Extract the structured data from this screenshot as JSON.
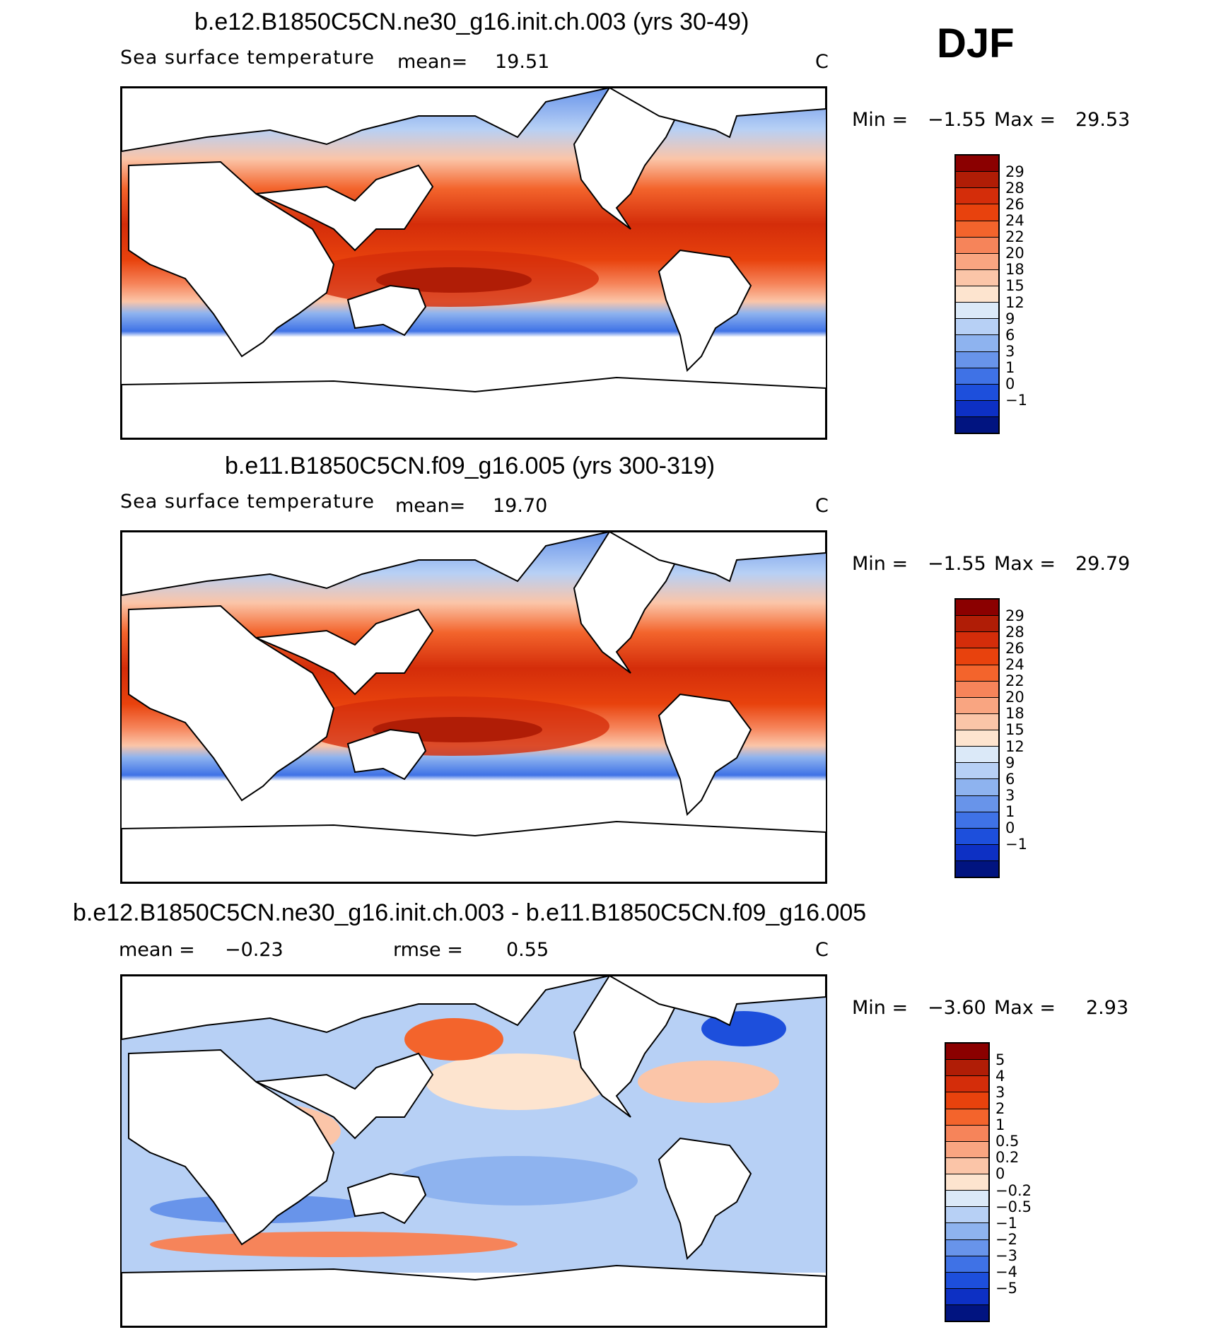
{
  "season": "DJF",
  "units": "C",
  "panel1": {
    "title": "b.e12.B1850C5CN.ne30_g16.init.ch.003 (yrs 30-49)",
    "variable": "Sea surface temperature",
    "mean_label": "mean=",
    "mean_value": "19.51",
    "min_label": "Min =",
    "min_value": "−1.55",
    "max_label": "Max =",
    "max_value": "29.53"
  },
  "panel2": {
    "title": "b.e11.B1850C5CN.f09_g16.005 (yrs 300-319)",
    "variable": "Sea surface temperature",
    "mean_label": "mean=",
    "mean_value": "19.70",
    "min_label": "Min =",
    "min_value": "−1.55",
    "max_label": "Max =",
    "max_value": "29.79"
  },
  "panel3": {
    "title": "b.e12.B1850C5CN.ne30_g16.init.ch.003 - b.e11.B1850C5CN.f09_g16.005",
    "mean_label": "mean =",
    "mean_value": "−0.23",
    "rmse_label": "rmse =",
    "rmse_value": "0.55",
    "min_label": "Min =",
    "min_value": "−3.60",
    "max_label": "Max =",
    "max_value": "2.93"
  },
  "sst_colorbar": {
    "labels": [
      "29",
      "28",
      "26",
      "24",
      "22",
      "20",
      "18",
      "15",
      "12",
      "9",
      "6",
      "3",
      "1",
      "0",
      "−1"
    ],
    "colors": [
      "#8b0000",
      "#b01d06",
      "#d42d0a",
      "#e8420d",
      "#f3642c",
      "#f6845a",
      "#f9a581",
      "#fbc5a8",
      "#fde4cf",
      "#dbe9f8",
      "#b7d0f5",
      "#8eb3ef",
      "#6894ea",
      "#3f72e6",
      "#1d4fdc",
      "#0d30c4",
      "#011480"
    ]
  },
  "diff_colorbar": {
    "labels": [
      "5",
      "4",
      "3",
      "2",
      "1",
      "0.5",
      "0.2",
      "0",
      "−0.2",
      "−0.5",
      "−1",
      "−2",
      "−3",
      "−4",
      "−5"
    ],
    "colors": [
      "#8b0000",
      "#b01d06",
      "#d42d0a",
      "#e8420d",
      "#f3642c",
      "#f6845a",
      "#f9a581",
      "#fbc5a8",
      "#fde4cf",
      "#dbe9f8",
      "#b7d0f5",
      "#8eb3ef",
      "#6894ea",
      "#3f72e6",
      "#1d4fdc",
      "#0d30c4",
      "#011480"
    ]
  },
  "chart_data": [
    {
      "type": "heatmap",
      "title": "b.e12.B1850C5CN.ne30_g16.init.ch.003 (yrs 30-49)",
      "variable": "Sea surface temperature",
      "units": "C",
      "season": "DJF",
      "mean": 19.51,
      "min": -1.55,
      "max": 29.53,
      "contour_levels": [
        -1,
        0,
        1,
        3,
        6,
        9,
        12,
        15,
        18,
        20,
        22,
        24,
        26,
        28,
        29
      ]
    },
    {
      "type": "heatmap",
      "title": "b.e11.B1850C5CN.f09_g16.005 (yrs 300-319)",
      "variable": "Sea surface temperature",
      "units": "C",
      "season": "DJF",
      "mean": 19.7,
      "min": -1.55,
      "max": 29.79,
      "contour_levels": [
        -1,
        0,
        1,
        3,
        6,
        9,
        12,
        15,
        18,
        20,
        22,
        24,
        26,
        28,
        29
      ]
    },
    {
      "type": "heatmap",
      "title": "b.e12.B1850C5CN.ne30_g16.init.ch.003 - b.e11.B1850C5CN.f09_g16.005",
      "units": "C",
      "season": "DJF",
      "mean": -0.23,
      "rmse": 0.55,
      "min": -3.6,
      "max": 2.93,
      "contour_levels": [
        -5,
        -4,
        -3,
        -2,
        -1,
        -0.5,
        -0.2,
        0,
        0.2,
        0.5,
        1,
        2,
        3,
        4,
        5
      ]
    }
  ]
}
